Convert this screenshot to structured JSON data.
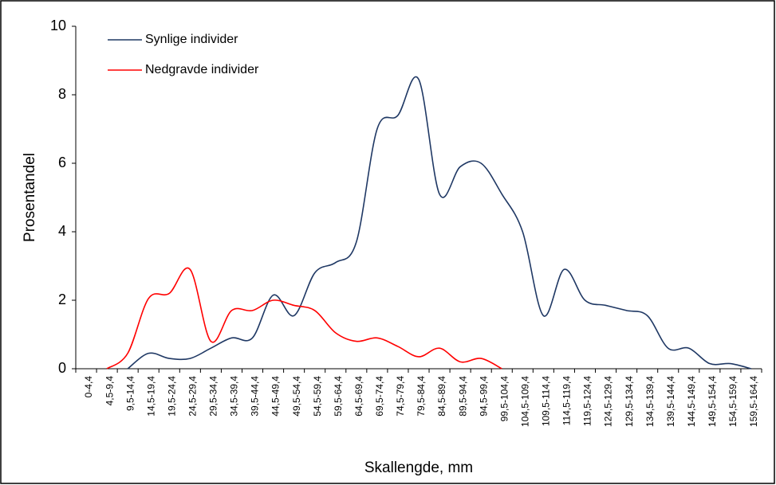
{
  "chart_data": {
    "type": "line",
    "xlabel": "Skallengde, mm",
    "ylabel": "Prosentandel",
    "categories": [
      "0-4,4",
      "4,5-9,4",
      "9,5-14,4",
      "14,5-19,4",
      "19,5-24,4",
      "24,5-29,4",
      "29,5-34,4",
      "34,5-39,4",
      "39,5-44,4",
      "44,5-49,4",
      "49,5-54,4",
      "54,5-59,4",
      "59,5-64,4",
      "64,5-69,4",
      "69,5-74,4",
      "74,5-79,4",
      "79,5-84,4",
      "84,5-89,4",
      "89,5-94,4",
      "94,5-99,4",
      "99,5-104,4",
      "104,5-109,4",
      "109,5-114,4",
      "114,5-119,4",
      "119,5-124,4",
      "124,5-129,4",
      "129,5-134,4",
      "134,5-139,4",
      "139,5-144,4",
      "144,5-149,4",
      "149,5-154,4",
      "154,5-159,4",
      "159,5-164,4"
    ],
    "series": [
      {
        "name": "Synlige individer",
        "color": "#1f3864",
        "values": [
          null,
          null,
          0,
          0.45,
          0.3,
          0.3,
          0.6,
          0.9,
          0.9,
          2.15,
          1.55,
          2.8,
          3.1,
          3.7,
          7.0,
          7.4,
          8.45,
          5.1,
          5.9,
          6.0,
          5.1,
          4.0,
          1.55,
          2.9,
          2.0,
          1.85,
          1.7,
          1.55,
          0.6,
          0.6,
          0.15,
          0.15,
          0
        ]
      },
      {
        "name": "Nedgravde individer",
        "color": "#ff0000",
        "values": [
          null,
          0,
          0.45,
          2.05,
          2.2,
          2.9,
          0.8,
          1.7,
          1.7,
          2.0,
          1.85,
          1.7,
          1.05,
          0.8,
          0.9,
          0.65,
          0.35,
          0.6,
          0.2,
          0.3,
          0,
          null,
          null,
          null,
          null,
          null,
          null,
          null,
          null,
          null,
          null,
          null,
          null
        ]
      }
    ],
    "ylim": [
      0,
      10
    ],
    "yticks": [
      0,
      2,
      4,
      6,
      8,
      10
    ],
    "smooth": true
  }
}
